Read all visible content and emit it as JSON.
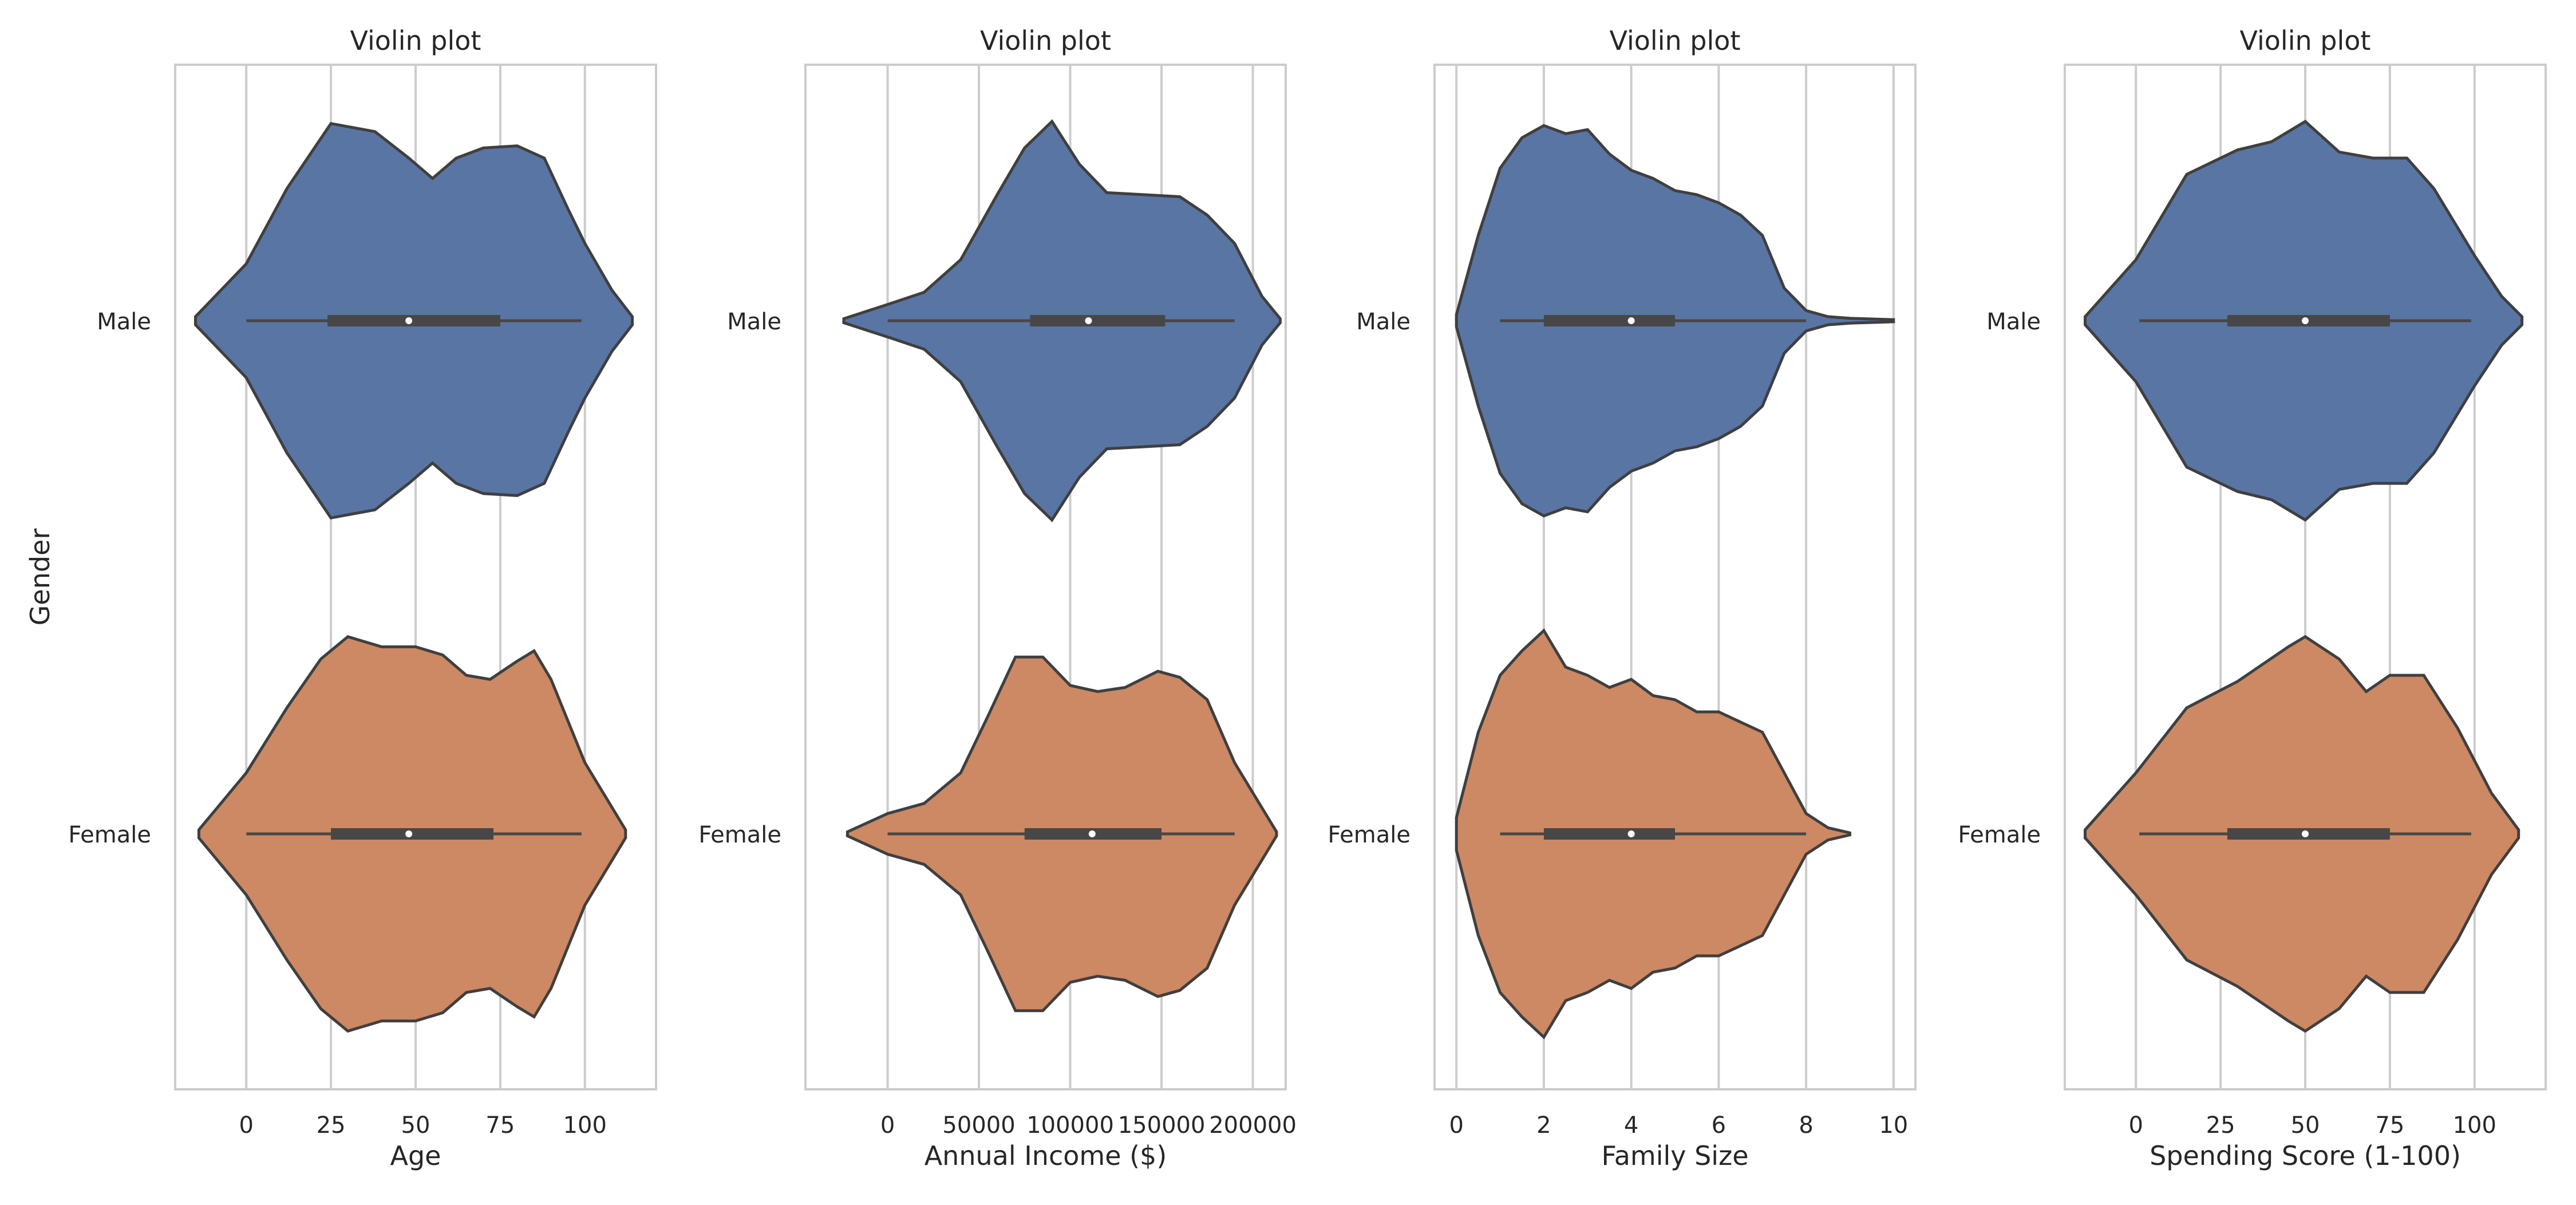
{
  "chart_data": [
    {
      "type": "violin",
      "title": "Violin plot",
      "xlabel": "Age",
      "ylabel": "Gender",
      "xlim": [
        -21,
        121
      ],
      "xticks": [
        0,
        25,
        50,
        75,
        100
      ],
      "xtick_labels": [
        "0",
        "25",
        "50",
        "75",
        "100"
      ],
      "grid": true,
      "categories": [
        "Male",
        "Female"
      ],
      "series": [
        {
          "name": "Male",
          "color": "#5975a4",
          "min": 0,
          "q1": 24,
          "median": 48,
          "q3": 75,
          "max": 99,
          "density_y": [
            -15,
            0,
            12,
            25,
            38,
            48,
            55,
            62,
            70,
            80,
            88,
            95,
            100,
            108,
            114
          ],
          "density_w": [
            0.02,
            0.28,
            0.65,
            0.97,
            0.93,
            0.8,
            0.7,
            0.8,
            0.85,
            0.86,
            0.8,
            0.55,
            0.38,
            0.15,
            0.02
          ]
        },
        {
          "name": "Female",
          "color": "#cc8963",
          "min": 0,
          "q1": 25,
          "median": 48,
          "q3": 73,
          "max": 99,
          "density_y": [
            -14,
            0,
            12,
            22,
            30,
            40,
            50,
            58,
            65,
            72,
            80,
            85,
            90,
            100,
            112
          ],
          "density_w": [
            0.02,
            0.3,
            0.62,
            0.86,
            0.97,
            0.92,
            0.92,
            0.88,
            0.78,
            0.76,
            0.85,
            0.9,
            0.76,
            0.35,
            0.02
          ]
        }
      ]
    },
    {
      "type": "violin",
      "title": "Violin plot",
      "xlabel": "Annual Income ($)",
      "ylabel": "",
      "xlim": [
        -45000,
        218000
      ],
      "xticks": [
        0,
        50000,
        100000,
        150000,
        200000
      ],
      "xtick_labels": [
        "0",
        "50000",
        "100000",
        "150000",
        "200000"
      ],
      "grid": true,
      "categories": [
        "Male",
        "Female"
      ],
      "series": [
        {
          "name": "Male",
          "color": "#5975a4",
          "min": 0,
          "q1": 78000,
          "median": 110000,
          "q3": 152000,
          "max": 190000,
          "density_y": [
            -24000,
            0,
            20000,
            40000,
            60000,
            75000,
            90000,
            105000,
            120000,
            140000,
            160000,
            175000,
            190000,
            205000,
            215000
          ],
          "density_w": [
            0.01,
            0.08,
            0.14,
            0.3,
            0.62,
            0.85,
            0.98,
            0.77,
            0.63,
            0.62,
            0.61,
            0.52,
            0.38,
            0.12,
            0.01
          ]
        },
        {
          "name": "Female",
          "color": "#cc8963",
          "min": 0,
          "q1": 75000,
          "median": 112000,
          "q3": 150000,
          "max": 190000,
          "density_y": [
            -22000,
            0,
            20000,
            40000,
            55000,
            70000,
            85000,
            100000,
            115000,
            130000,
            148000,
            160000,
            175000,
            190000,
            213000
          ],
          "density_w": [
            0.01,
            0.1,
            0.15,
            0.3,
            0.58,
            0.87,
            0.87,
            0.73,
            0.7,
            0.72,
            0.8,
            0.77,
            0.66,
            0.35,
            0.01
          ]
        }
      ]
    },
    {
      "type": "violin",
      "title": "Violin plot",
      "xlabel": "Family Size",
      "ylabel": "",
      "xlim": [
        -0.5,
        10.5
      ],
      "xticks": [
        0,
        2,
        4,
        6,
        8,
        10
      ],
      "xtick_labels": [
        "0",
        "2",
        "4",
        "6",
        "8",
        "10"
      ],
      "grid": true,
      "categories": [
        "Male",
        "Female"
      ],
      "series": [
        {
          "name": "Male",
          "color": "#5975a4",
          "min": 1,
          "q1": 2,
          "median": 4,
          "q3": 5,
          "max": 8,
          "density_y": [
            0,
            0.5,
            1,
            1.5,
            2,
            2.5,
            3,
            3.5,
            4,
            4.5,
            5,
            5.5,
            6,
            6.5,
            7,
            7.5,
            8,
            8.5,
            9,
            10
          ],
          "density_w": [
            0.03,
            0.42,
            0.75,
            0.9,
            0.96,
            0.92,
            0.94,
            0.82,
            0.74,
            0.7,
            0.64,
            0.62,
            0.58,
            0.52,
            0.42,
            0.16,
            0.05,
            0.02,
            0.012,
            0.005
          ]
        },
        {
          "name": "Female",
          "color": "#cc8963",
          "min": 1,
          "q1": 2,
          "median": 4,
          "q3": 5,
          "max": 8,
          "density_y": [
            0,
            0.5,
            1,
            1.5,
            2,
            2.5,
            3,
            3.5,
            4,
            4.5,
            5,
            5.5,
            6,
            6.5,
            7,
            7.5,
            8,
            8.5,
            9
          ],
          "density_w": [
            0.08,
            0.5,
            0.78,
            0.9,
            1.0,
            0.82,
            0.78,
            0.72,
            0.76,
            0.68,
            0.66,
            0.6,
            0.6,
            0.55,
            0.5,
            0.3,
            0.1,
            0.03,
            0.005
          ]
        }
      ]
    },
    {
      "type": "violin",
      "title": "Violin plot",
      "xlabel": "Spending Score (1-100)",
      "ylabel": "",
      "xlim": [
        -21,
        121
      ],
      "xticks": [
        0,
        25,
        50,
        75,
        100
      ],
      "xtick_labels": [
        "0",
        "25",
        "50",
        "75",
        "100"
      ],
      "grid": true,
      "categories": [
        "Male",
        "Female"
      ],
      "series": [
        {
          "name": "Male",
          "color": "#5975a4",
          "min": 1,
          "q1": 27,
          "median": 50,
          "q3": 75,
          "max": 99,
          "density_y": [
            -15,
            0,
            15,
            30,
            40,
            50,
            60,
            70,
            80,
            88,
            100,
            108,
            114
          ],
          "density_w": [
            0.02,
            0.3,
            0.72,
            0.84,
            0.88,
            0.98,
            0.83,
            0.8,
            0.8,
            0.65,
            0.32,
            0.12,
            0.02
          ]
        },
        {
          "name": "Female",
          "color": "#cc8963",
          "min": 1,
          "q1": 27,
          "median": 50,
          "q3": 75,
          "max": 99,
          "density_y": [
            -15,
            0,
            15,
            30,
            45,
            50,
            60,
            68,
            75,
            85,
            95,
            105,
            113
          ],
          "density_w": [
            0.02,
            0.3,
            0.62,
            0.75,
            0.92,
            0.97,
            0.86,
            0.7,
            0.78,
            0.78,
            0.52,
            0.2,
            0.02
          ]
        }
      ]
    }
  ]
}
